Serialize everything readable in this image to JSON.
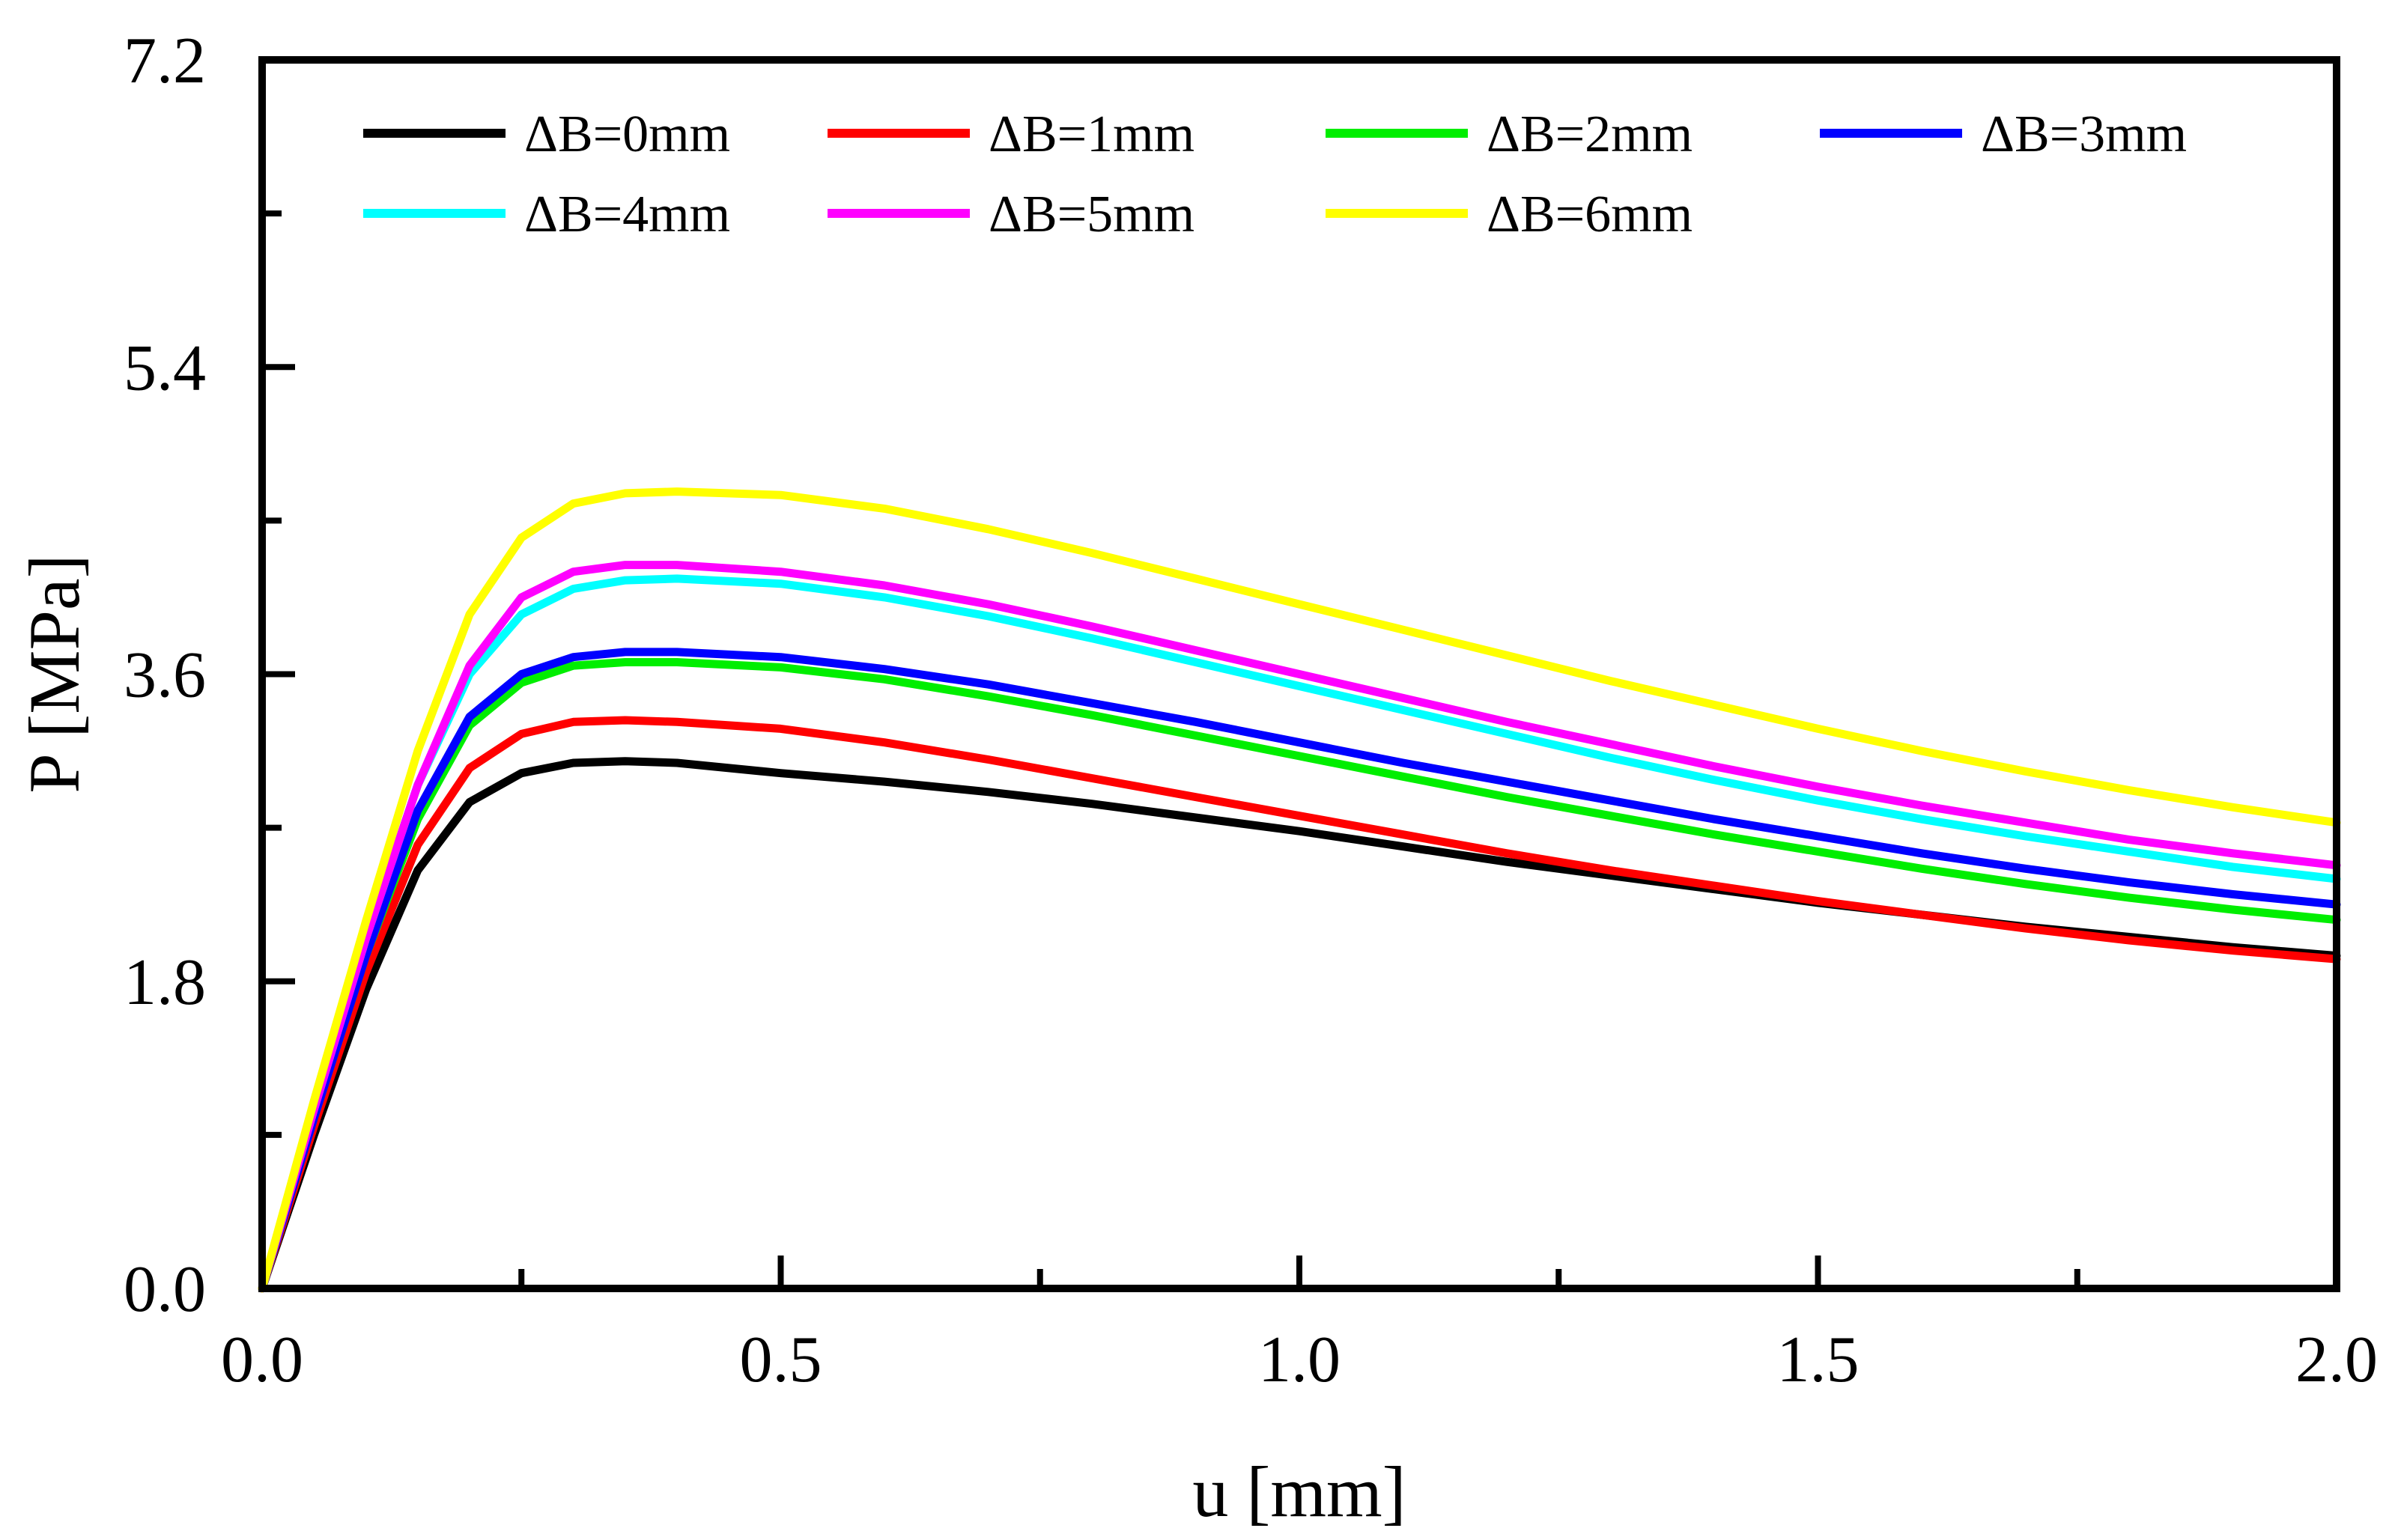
{
  "chart_data": {
    "type": "line",
    "title": "",
    "xlabel": "u [mm]",
    "ylabel": "P [MPa]",
    "xlim": [
      0,
      2.0
    ],
    "ylim": [
      0,
      7.2
    ],
    "xticks": [
      "0.0",
      "0.5",
      "1.0",
      "1.5",
      "2.0"
    ],
    "yticks": [
      "0.0",
      "1.8",
      "3.6",
      "5.4",
      "7.2"
    ],
    "grid": false,
    "legend_position": "top",
    "x": [
      0,
      0.05,
      0.1,
      0.15,
      0.2,
      0.25,
      0.3,
      0.35,
      0.4,
      0.5,
      0.6,
      0.7,
      0.8,
      0.9,
      1.0,
      1.1,
      1.2,
      1.3,
      1.4,
      1.5,
      1.6,
      1.7,
      1.8,
      1.9,
      2.0
    ],
    "series": [
      {
        "name": "ΔB=0mm",
        "color": "#000000",
        "values": [
          0.0,
          0.9,
          1.75,
          2.45,
          2.85,
          3.02,
          3.08,
          3.09,
          3.08,
          3.02,
          2.97,
          2.91,
          2.84,
          2.76,
          2.68,
          2.59,
          2.5,
          2.42,
          2.34,
          2.26,
          2.19,
          2.12,
          2.06,
          2.0,
          1.95
        ]
      },
      {
        "name": "ΔB=1mm",
        "color": "#ff0000",
        "values": [
          0.0,
          0.95,
          1.85,
          2.6,
          3.05,
          3.25,
          3.32,
          3.33,
          3.32,
          3.28,
          3.2,
          3.1,
          2.99,
          2.88,
          2.77,
          2.66,
          2.55,
          2.45,
          2.36,
          2.27,
          2.19,
          2.11,
          2.04,
          1.98,
          1.93
        ]
      },
      {
        "name": "ΔB=2mm",
        "color": "#00ee00",
        "values": [
          0.0,
          1.0,
          1.95,
          2.75,
          3.3,
          3.55,
          3.65,
          3.67,
          3.67,
          3.64,
          3.57,
          3.47,
          3.36,
          3.24,
          3.12,
          3.0,
          2.88,
          2.77,
          2.66,
          2.56,
          2.46,
          2.37,
          2.29,
          2.22,
          2.16
        ]
      },
      {
        "name": "ΔB=3mm",
        "color": "#0000ff",
        "values": [
          0.0,
          1.0,
          1.95,
          2.8,
          3.35,
          3.6,
          3.7,
          3.73,
          3.73,
          3.7,
          3.63,
          3.54,
          3.43,
          3.32,
          3.2,
          3.08,
          2.97,
          2.86,
          2.75,
          2.65,
          2.55,
          2.46,
          2.38,
          2.31,
          2.25
        ]
      },
      {
        "name": "ΔB=4mm",
        "color": "#00ffff",
        "values": [
          0.0,
          1.05,
          2.05,
          2.95,
          3.6,
          3.95,
          4.1,
          4.15,
          4.16,
          4.13,
          4.05,
          3.94,
          3.81,
          3.67,
          3.53,
          3.39,
          3.25,
          3.11,
          2.98,
          2.86,
          2.75,
          2.65,
          2.56,
          2.47,
          2.4
        ]
      },
      {
        "name": "ΔB=5mm",
        "color": "#ff00ff",
        "values": [
          0.0,
          1.05,
          2.05,
          2.95,
          3.65,
          4.05,
          4.2,
          4.24,
          4.24,
          4.2,
          4.12,
          4.01,
          3.88,
          3.74,
          3.6,
          3.46,
          3.32,
          3.19,
          3.06,
          2.94,
          2.83,
          2.73,
          2.63,
          2.55,
          2.48
        ]
      },
      {
        "name": "ΔB=6mm",
        "color": "#ffff00",
        "values": [
          0.0,
          1.1,
          2.15,
          3.15,
          3.95,
          4.4,
          4.6,
          4.66,
          4.67,
          4.65,
          4.57,
          4.45,
          4.31,
          4.16,
          4.01,
          3.86,
          3.71,
          3.56,
          3.42,
          3.28,
          3.15,
          3.03,
          2.92,
          2.82,
          2.73
        ]
      }
    ]
  }
}
